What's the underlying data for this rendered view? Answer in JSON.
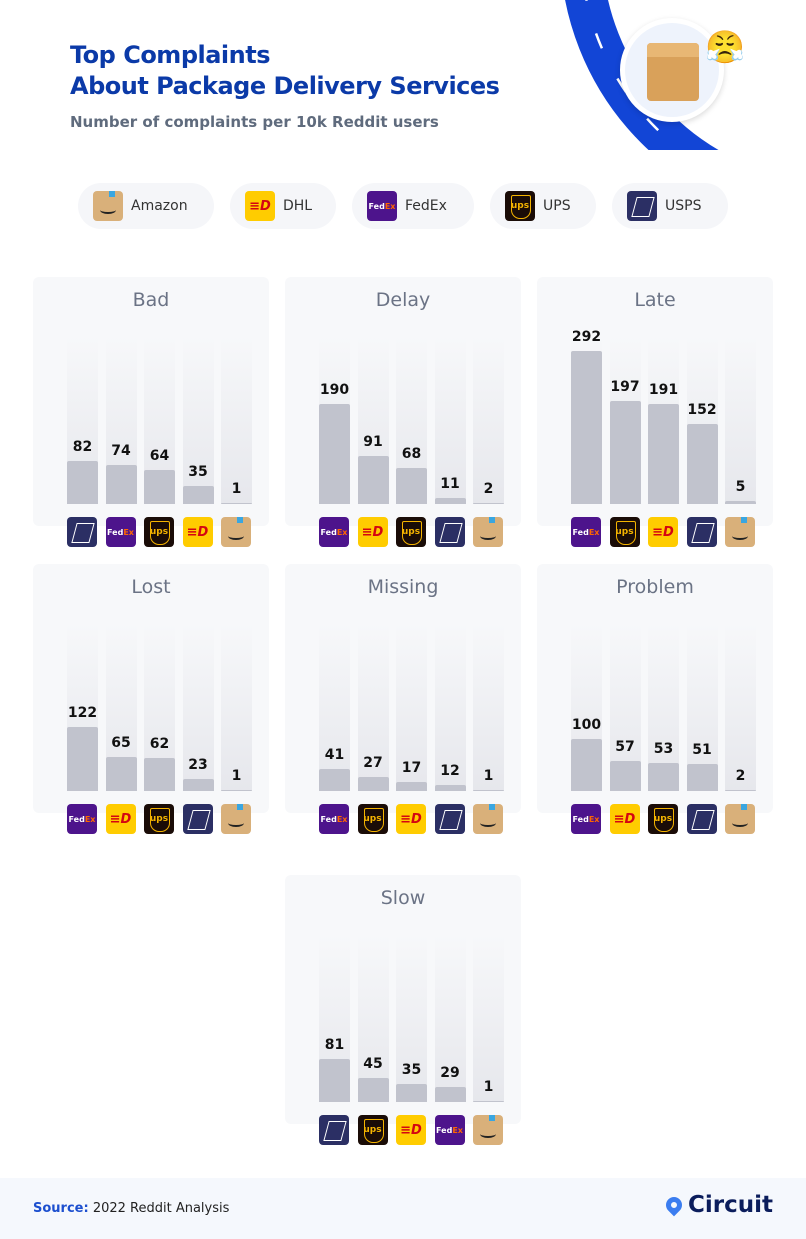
{
  "header": {
    "title_line1": "Top Complaints",
    "title_line2": "About Package Delivery Services",
    "subtitle": "Number of complaints per 10k Reddit users"
  },
  "legend": [
    {
      "key": "amazon",
      "label": "Amazon"
    },
    {
      "key": "dhl",
      "label": "DHL"
    },
    {
      "key": "fedex",
      "label": "FedEx"
    },
    {
      "key": "ups",
      "label": "UPS"
    },
    {
      "key": "usps",
      "label": "USPS"
    }
  ],
  "colors": {
    "bar": "#c1c3cd",
    "title": "#0b3aa8",
    "amazon": "#d9b07a",
    "dhl": "#ffcc00",
    "fedex": "#4d148c",
    "ups": "#1a0c07",
    "usps": "#2b2f64"
  },
  "chart_data": {
    "type": "bar",
    "unit": "Number of complaints per 10k Reddit users",
    "ylim": [
      0,
      320
    ],
    "panels": [
      {
        "title": "Bad",
        "categories": [
          "USPS",
          "FedEx",
          "UPS",
          "DHL",
          "Amazon"
        ],
        "values": [
          82,
          74,
          64,
          35,
          1
        ]
      },
      {
        "title": "Delay",
        "categories": [
          "FedEx",
          "DHL",
          "UPS",
          "USPS",
          "Amazon"
        ],
        "values": [
          190,
          91,
          68,
          11,
          2
        ]
      },
      {
        "title": "Late",
        "categories": [
          "FedEx",
          "UPS",
          "DHL",
          "USPS",
          "Amazon"
        ],
        "values": [
          292,
          197,
          191,
          152,
          5
        ]
      },
      {
        "title": "Lost",
        "categories": [
          "FedEx",
          "DHL",
          "UPS",
          "USPS",
          "Amazon"
        ],
        "values": [
          122,
          65,
          62,
          23,
          1
        ]
      },
      {
        "title": "Missing",
        "categories": [
          "FedEx",
          "UPS",
          "DHL",
          "USPS",
          "Amazon"
        ],
        "values": [
          41,
          27,
          17,
          12,
          1
        ]
      },
      {
        "title": "Problem",
        "categories": [
          "FedEx",
          "DHL",
          "UPS",
          "USPS",
          "Amazon"
        ],
        "values": [
          100,
          57,
          53,
          51,
          2
        ]
      },
      {
        "title": "Slow",
        "categories": [
          "USPS",
          "UPS",
          "DHL",
          "FedEx",
          "Amazon"
        ],
        "values": [
          81,
          45,
          35,
          29,
          1
        ]
      }
    ]
  },
  "footer": {
    "source_label": "Source:",
    "source_text": "2022 Reddit Analysis",
    "brand": "Circuit"
  }
}
